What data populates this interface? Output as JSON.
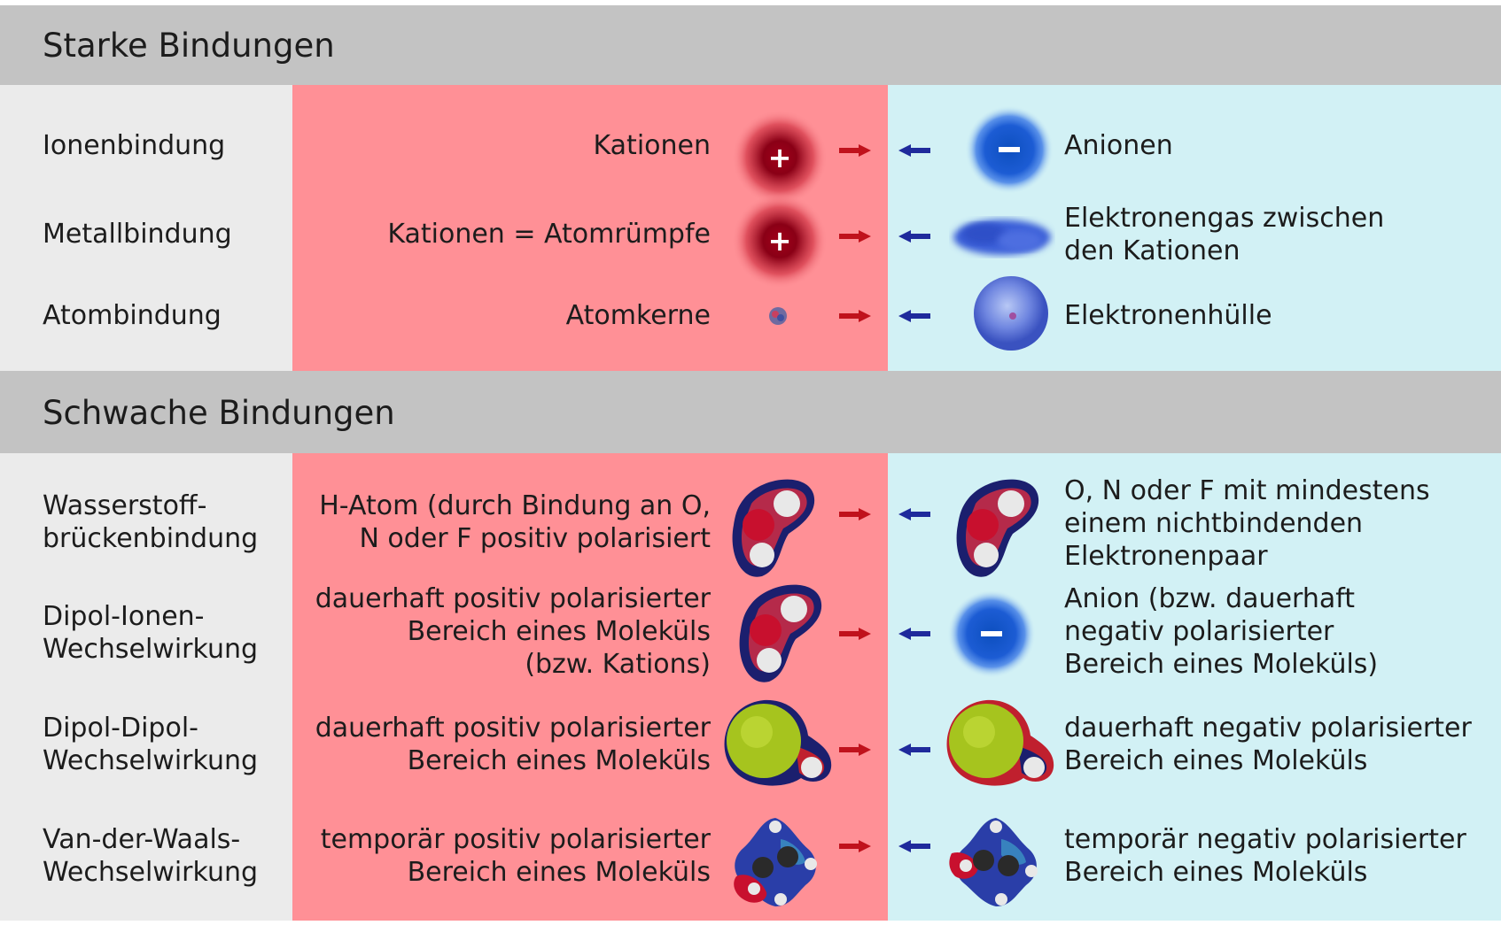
{
  "sections": [
    {
      "title": "Starke Bindungen",
      "rows": [
        {
          "name": "Ionenbindung",
          "left": "Kationen",
          "left_icon": "cation-icon",
          "right": "Anionen",
          "right_icon": "anion-icon"
        },
        {
          "name": "Metallbindung",
          "left": "Kationen = Atomrümpfe",
          "left_icon": "cation-icon",
          "right": "Elektronengas zwischen\nden Kationen",
          "right_icon": "electron-gas-icon"
        },
        {
          "name": "Atombindung",
          "left": "Atomkerne",
          "left_icon": "atom-nucleus-icon",
          "right": "Elektronenhülle",
          "right_icon": "electron-shell-icon"
        }
      ]
    },
    {
      "title": "Schwache Bindungen",
      "rows": [
        {
          "name": "Wasserstoff-\nbrückenbindung",
          "left": "H-Atom (durch Bindung an O,\nN oder F positiv polarisiert",
          "left_icon": "water-molecule-icon",
          "right": "O, N oder F mit mindestens\neinem nichtbindenden\nElektronenpaar",
          "right_icon": "water-molecule-icon"
        },
        {
          "name": "Dipol-Ionen-\nWechselwirkung",
          "left": "dauerhaft positiv polarisierter\nBereich eines Moleküls\n(bzw. Kations)",
          "left_icon": "water-molecule-icon",
          "right": "Anion (bzw. dauerhaft\nnegativ polarisierter\nBereich eines Moleküls)",
          "right_icon": "anion-icon"
        },
        {
          "name": "Dipol-Dipol-\nWechselwirkung",
          "left": "dauerhaft positiv polarisierter\nBereich eines Moleküls",
          "left_icon": "hcl-molecule-icon",
          "right": "dauerhaft negativ polarisierter\nBereich eines Moleküls",
          "right_icon": "hcl-molecule-icon"
        },
        {
          "name": "Van-der-Waals-\nWechselwirkung",
          "left": "temporär positiv polarisierter\nBereich eines Moleküls",
          "left_icon": "ethene-molecule-icon",
          "right": "temporär negativ polarisierter\nBereich eines Moleküls",
          "right_icon": "ethene-molecule-icon"
        }
      ]
    }
  ],
  "symbols": {
    "plus": "+",
    "minus": "−"
  },
  "colors": {
    "header_band": "#c3c3c3",
    "label_column": "#ebebeb",
    "positive_column": "#ff9096",
    "negative_column": "#d2f1f5",
    "red_arrow": "#c0121c",
    "blue_arrow": "#1f2a9c"
  }
}
